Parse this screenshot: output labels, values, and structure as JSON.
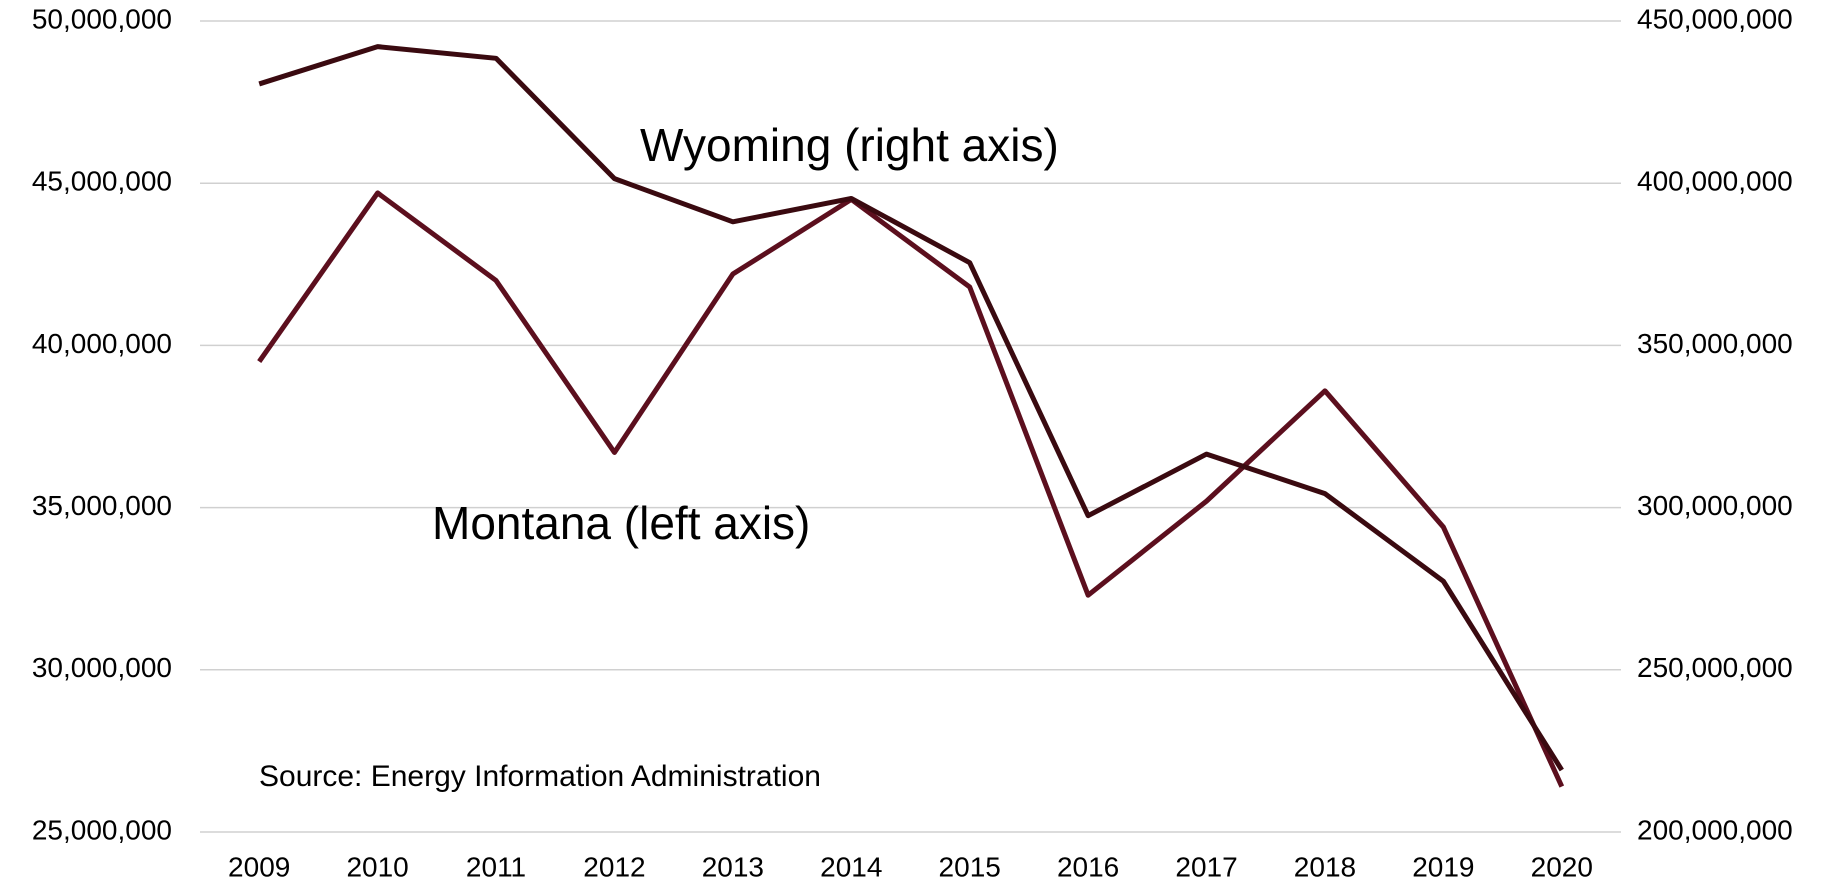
{
  "chart_data": {
    "type": "line",
    "categories": [
      "2009",
      "2010",
      "2011",
      "2012",
      "2013",
      "2014",
      "2015",
      "2016",
      "2017",
      "2018",
      "2019",
      "2020"
    ],
    "series": [
      {
        "name": "Montana (left axis)",
        "color": "#5c0f1e",
        "values": [
          39500000,
          44700000,
          42000000,
          36700000,
          42200000,
          44500000,
          41800000,
          32300000,
          35200000,
          38600000,
          34400000,
          26400000
        ]
      },
      {
        "name": "Wyoming (right axis)",
        "color": "#3a0a10",
        "axis": "y2",
        "values": [
          430600000,
          442100000,
          438500000,
          401400000,
          388100000,
          395300000,
          375500000,
          297500000,
          316500000,
          304300000,
          277300000,
          219100000
        ]
      }
    ],
    "ylim": [
      25000000,
      50000000
    ],
    "yticks": [
      {
        "value": 25000000,
        "label": "25,000,000"
      },
      {
        "value": 30000000,
        "label": "30,000,000"
      },
      {
        "value": 35000000,
        "label": "35,000,000"
      },
      {
        "value": 40000000,
        "label": "40,000,000"
      },
      {
        "value": 45000000,
        "label": "45,000,000"
      },
      {
        "value": 50000000,
        "label": "50,000,000"
      }
    ],
    "y2lim": [
      200000000,
      450000000
    ],
    "y2ticks": [
      {
        "value": 200000000,
        "label": "200,000,000"
      },
      {
        "value": 250000000,
        "label": "250,000,000"
      },
      {
        "value": 300000000,
        "label": "300,000,000"
      },
      {
        "value": 350000000,
        "label": "350,000,000"
      },
      {
        "value": 400000000,
        "label": "400,000,000"
      },
      {
        "value": 450000000,
        "label": "450,000,000"
      }
    ],
    "grid": true,
    "annotations": [
      "Source:  Energy Information Administration"
    ]
  }
}
